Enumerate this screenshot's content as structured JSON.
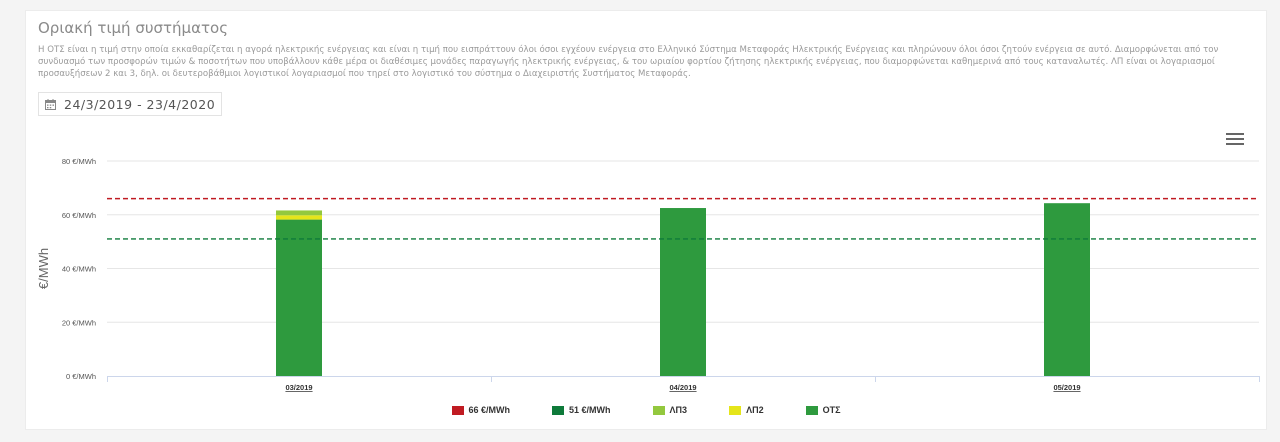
{
  "panel": {
    "title": "Οριακή τιμή συστήματος",
    "description": "Η ΟΤΣ είναι η τιμή στην οποία εκκαθαρίζεται η αγορά ηλεκτρικής ενέργειας και είναι η τιμή που εισπράττουν όλοι όσοι εγχέουν ενέργεια στο Ελληνικό Σύστημα Μεταφοράς Ηλεκτρικής Ενέργειας και πληρώνουν όλοι όσοι ζητούν ενέργεια σε αυτό. Διαμορφώνεται από τον συνδυασμό των προσφορών τιμών & ποσοτήτων που υποβάλλουν κάθε μέρα οι διαθέσιμες μονάδες παραγωγής ηλεκτρικής ενέργειας, & του ωριαίου φορτίου ζήτησης ηλεκτρικής ενέργειας, που διαμορφώνεται καθημερινά από τους καταναλωτές. ΛΠ είναι οι λογαριασμοί προσαυξήσεων 2 και 3, δηλ. οι δευτεροβάθμιοι λογιστικοί λογαριασμοί που τηρεί στο λογιστικό του σύστημα ο Διαχειριστής Συστήματος Μεταφοράς.",
    "date_range": "24/3/2019 - 23/4/2020",
    "calendar_icon": "calendar-icon",
    "menu_icon": "hamburger-menu-icon"
  },
  "chart_data": {
    "type": "bar",
    "stacked": true,
    "categories": [
      "03/2019",
      "04/2019",
      "05/2019"
    ],
    "series": [
      {
        "name": "ΟΤΣ",
        "values": [
          58.2,
          62.5,
          64.3
        ],
        "color": "#2e9a3e"
      },
      {
        "name": "ΛΠ2",
        "values": [
          1.6,
          0,
          0
        ],
        "color": "#e5e51a"
      },
      {
        "name": "ΛΠ3",
        "values": [
          1.8,
          0,
          0
        ],
        "color": "#93c83e"
      }
    ],
    "reference_lines": [
      {
        "name": "66 €/MWh",
        "value": 66,
        "color": "#c01b22",
        "style": "dashed"
      },
      {
        "name": "51 €/MWh",
        "value": 51,
        "color": "#0e7a3a",
        "style": "dashed"
      }
    ],
    "legend_order": [
      "66 €/MWh",
      "51 €/MWh",
      "ΛΠ3",
      "ΛΠ2",
      "ΟΤΣ"
    ],
    "legend_position": "bottom-center",
    "ylabel": "€/MWh",
    "ylim": [
      0,
      80
    ],
    "yticks": [
      {
        "value": 0,
        "label": "0 €/MWh"
      },
      {
        "value": 20,
        "label": "20 €/MWh"
      },
      {
        "value": 40,
        "label": "40 €/MWh"
      },
      {
        "value": 60,
        "label": "60 €/MWh"
      },
      {
        "value": 80,
        "label": "80 €/MWh"
      }
    ],
    "grid": true
  }
}
